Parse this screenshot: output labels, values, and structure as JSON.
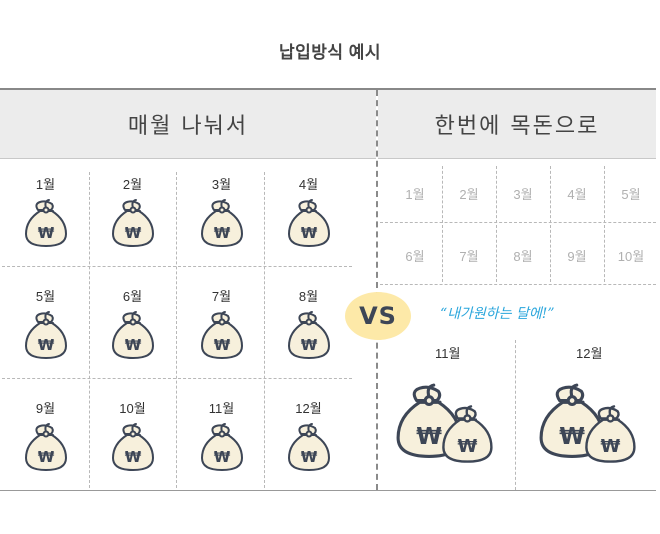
{
  "title": "납입방식 예시",
  "left": {
    "header": "매월 나눠서",
    "months": [
      "1월",
      "2월",
      "3월",
      "4월",
      "5월",
      "6월",
      "7월",
      "8월",
      "9월",
      "10월",
      "11월",
      "12월"
    ]
  },
  "right": {
    "header": "한번에 목돈으로",
    "months": [
      "1월",
      "2월",
      "3월",
      "4월",
      "5월",
      "6월",
      "7월",
      "8월",
      "9월",
      "10월"
    ],
    "big": [
      "11월",
      "12월"
    ],
    "quote": "“내가원하는 달에!”"
  },
  "vs": "VS",
  "currency_symbol": "₩",
  "colors": {
    "bag_fill": "#f7f0dc",
    "bag_stroke": "#3d4656",
    "header_bg": "#ececec",
    "vs_bg": "#fde9a8",
    "quote": "#2aa6dc"
  }
}
